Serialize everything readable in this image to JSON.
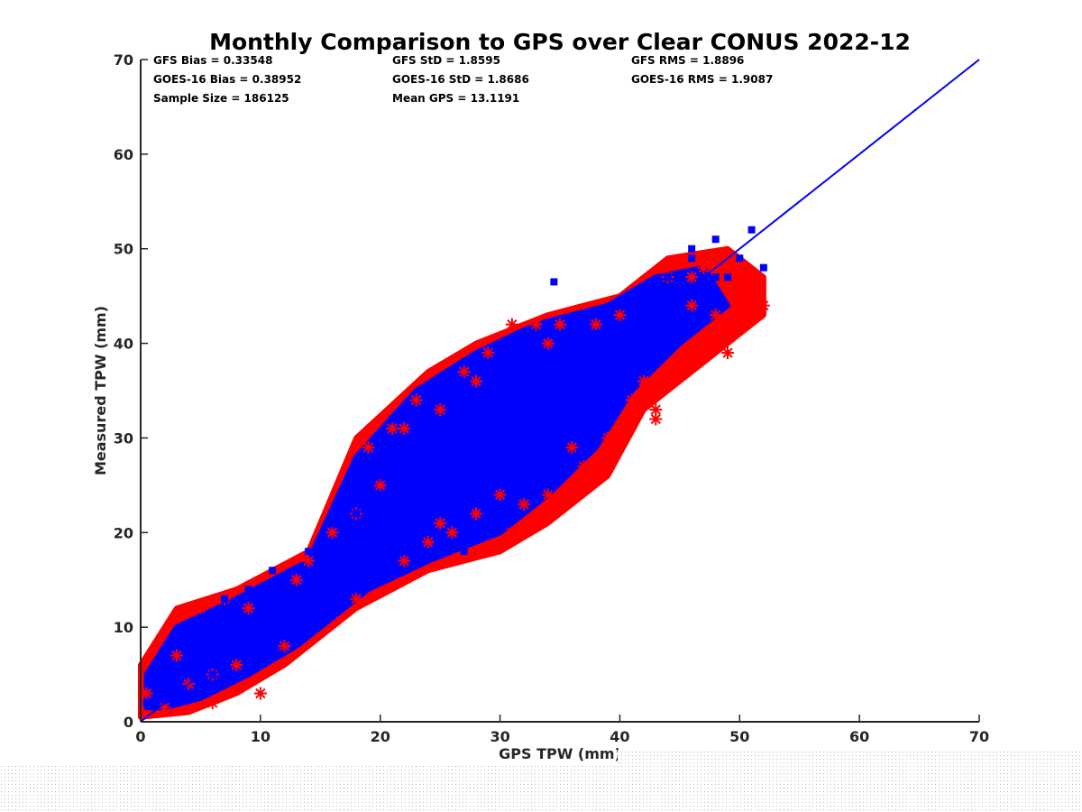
{
  "chart_data": {
    "type": "scatter",
    "title": "Monthly Comparison to GPS over Clear CONUS 2022-12",
    "xlabel": "GPS TPW (mm)",
    "ylabel": "Measured TPW (mm)",
    "xlim": [
      0,
      70
    ],
    "ylim": [
      0,
      70
    ],
    "xticks": [
      "0",
      "10",
      "20",
      "30",
      "40",
      "50",
      "60",
      "70"
    ],
    "yticks": [
      "0",
      "10",
      "20",
      "30",
      "40",
      "50",
      "60",
      "70"
    ],
    "grid": false,
    "stats": [
      [
        "GFS Bias = 0.33548",
        "GFS StD = 1.8595",
        "GFS RMS = 1.8896"
      ],
      [
        "GOES-16 Bias = 0.38952",
        "GOES-16 StD = 1.8686",
        "GOES-16 RMS = 1.9087"
      ],
      [
        "Sample Size = 186125",
        "Mean GPS = 13.1191",
        ""
      ]
    ],
    "series": [
      {
        "marker": "asterisk",
        "color": "#ff0000",
        "x": [
          0.5,
          2,
          3,
          4,
          5,
          6,
          7,
          8,
          10,
          12,
          14,
          16,
          18,
          19,
          20,
          21,
          22,
          23,
          24,
          25,
          26,
          27,
          28,
          29,
          30,
          31,
          32,
          33,
          34,
          35,
          36,
          37,
          38,
          39,
          40,
          41,
          42,
          43,
          44,
          45,
          46,
          47,
          48,
          49,
          50,
          51,
          52,
          3,
          6,
          9,
          13,
          18,
          22,
          25,
          28,
          31,
          34,
          37,
          40,
          43,
          46
        ],
        "y": [
          3,
          1.5,
          11,
          4,
          12,
          2,
          13,
          6,
          3,
          8,
          17,
          20,
          22,
          29,
          25,
          31,
          17,
          34,
          19,
          33,
          20,
          37,
          22,
          39,
          24,
          42,
          23,
          42,
          24,
          42,
          29,
          27,
          42,
          30,
          30,
          34,
          36,
          33,
          47,
          38,
          44,
          48,
          43,
          39,
          45,
          47,
          44,
          7,
          5,
          12,
          15,
          13,
          31,
          21,
          36,
          20,
          40,
          25,
          43,
          32,
          47
        ]
      },
      {
        "marker": "square",
        "color": "#0000ff",
        "x": [
          0.5,
          1,
          2,
          3,
          4,
          5,
          6,
          7,
          8,
          9,
          10,
          11,
          12,
          13,
          14,
          15,
          16,
          17,
          18,
          19,
          20,
          21,
          22,
          23,
          24,
          25,
          26,
          27,
          28,
          29,
          30,
          31,
          32,
          33,
          34,
          35,
          36,
          37,
          38,
          39,
          40,
          41,
          42,
          43,
          44,
          45,
          46,
          47,
          48,
          49,
          50,
          51,
          52,
          34.5,
          10,
          21,
          27,
          30,
          36,
          41,
          44,
          46,
          48
        ],
        "y": [
          2,
          4,
          6,
          9,
          7,
          11,
          5,
          13,
          8,
          14,
          6,
          16,
          11,
          12,
          18,
          14,
          21,
          15,
          22,
          18,
          24,
          19,
          27,
          21,
          29,
          22,
          31,
          24,
          34,
          26,
          36,
          27,
          39,
          30,
          41,
          33,
          40,
          35,
          41,
          38,
          44,
          40,
          43,
          42,
          47,
          44,
          49,
          46,
          51,
          47,
          49,
          52,
          48,
          46.5,
          10,
          32,
          18,
          25,
          42,
          37,
          45,
          50,
          47
        ]
      }
    ],
    "reference_line": {
      "type": "identity",
      "color": "#0000ff",
      "x": [
        0,
        70
      ],
      "y": [
        0,
        70
      ]
    }
  }
}
